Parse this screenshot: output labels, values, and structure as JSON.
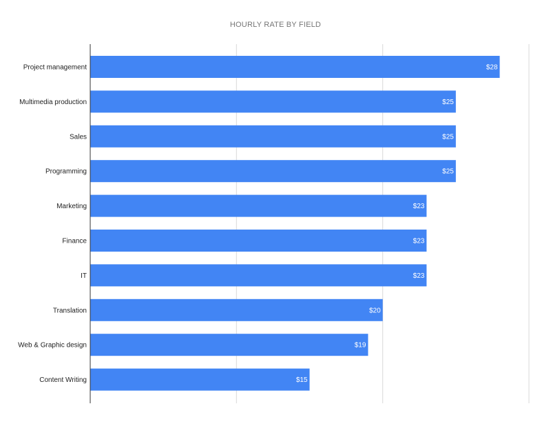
{
  "chart_data": {
    "type": "bar",
    "orientation": "horizontal",
    "title": "HOURLY RATE BY FIELD",
    "xlabel": "",
    "ylabel": "",
    "xlim": [
      0,
      30
    ],
    "grid": true,
    "legend": "none",
    "bar_color": "#4285f4",
    "categories": [
      "Project management",
      "Multimedia production",
      "Sales",
      "Programming",
      "Marketing",
      "Finance",
      "IT",
      "Translation",
      "Web & Graphic design",
      "Content Writing"
    ],
    "values": [
      28,
      25,
      25,
      25,
      23,
      23,
      23,
      20,
      19,
      15
    ],
    "data_labels": [
      "$28",
      "$25",
      "$25",
      "$25",
      "$23",
      "$23",
      "$23",
      "$20",
      "$19",
      "$15"
    ]
  }
}
